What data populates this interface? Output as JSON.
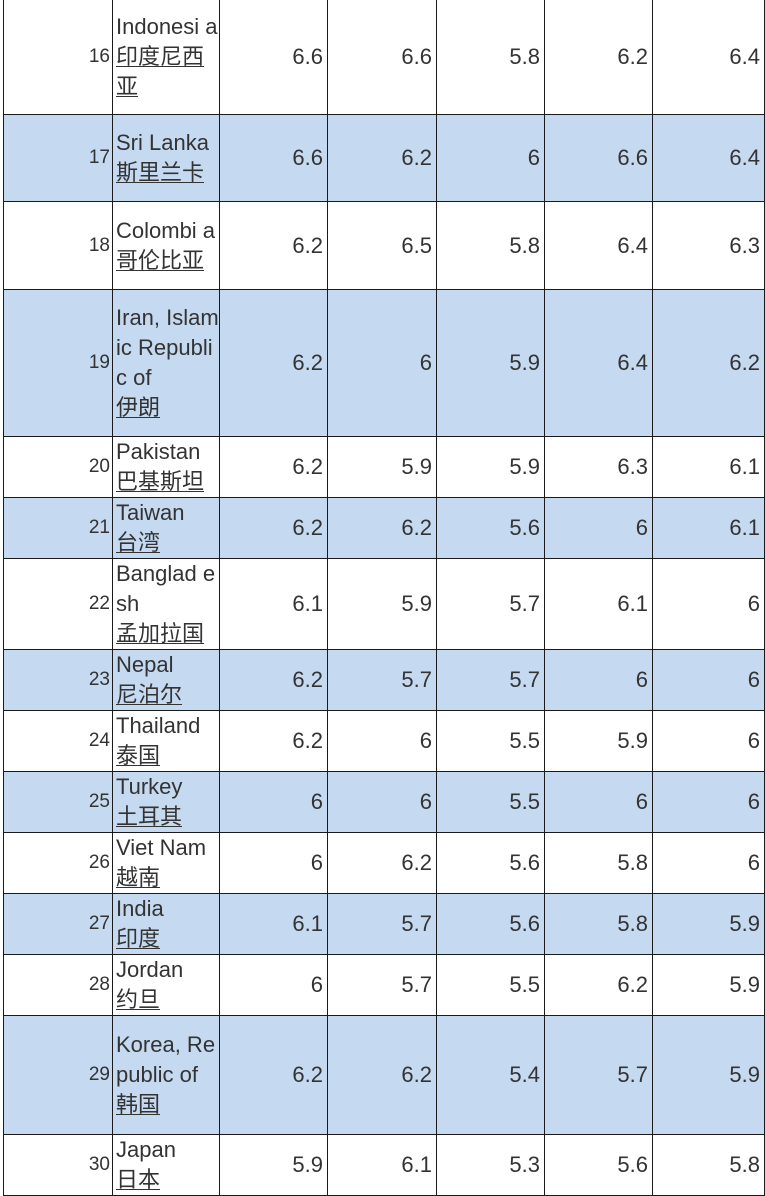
{
  "table": {
    "rows": [
      {
        "rank": "16",
        "en": "Indonesi a",
        "cn": "印度尼西亚",
        "v1": "6.6",
        "v2": "6.6",
        "v3": "5.8",
        "v4": "6.2",
        "v5": "6.4",
        "height": 116
      },
      {
        "rank": "17",
        "en": "Sri Lanka",
        "cn": "斯里兰卡",
        "v1": "6.6",
        "v2": "6.2",
        "v3": "6",
        "v4": "6.6",
        "v5": "6.4",
        "height": 87
      },
      {
        "rank": "18",
        "en": "Colombi a",
        "cn": "哥伦比亚",
        "v1": "6.2",
        "v2": "6.5",
        "v3": "5.8",
        "v4": "6.4",
        "v5": "6.3",
        "height": 88
      },
      {
        "rank": "19",
        "en": "Iran, Islamic Republic of",
        "cn": "伊朗",
        "v1": "6.2",
        "v2": "6",
        "v3": "5.9",
        "v4": "6.4",
        "v5": "6.2",
        "height": 147
      },
      {
        "rank": "20",
        "en": "Pakistan",
        "cn": "巴基斯坦",
        "v1": "6.2",
        "v2": "5.9",
        "v3": "5.9",
        "v4": "6.3",
        "v5": "6.1",
        "height": 59
      },
      {
        "rank": "21",
        "en": "Taiwan",
        "cn": "台湾",
        "v1": "6.2",
        "v2": "6.2",
        "v3": "5.6",
        "v4": "6",
        "v5": "6.1",
        "height": 58
      },
      {
        "rank": "22",
        "en": "Banglad esh",
        "cn": "孟加拉国",
        "v1": "6.1",
        "v2": "5.9",
        "v3": "5.7",
        "v4": "6.1",
        "v5": "6",
        "height": 88
      },
      {
        "rank": "23",
        "en": "Nepal",
        "cn": "尼泊尔",
        "v1": "6.2",
        "v2": "5.7",
        "v3": "5.7",
        "v4": "6",
        "v5": "6",
        "height": 59
      },
      {
        "rank": "24",
        "en": "Thailand",
        "cn": "泰国",
        "v1": "6.2",
        "v2": "6",
        "v3": "5.5",
        "v4": "5.9",
        "v5": "6",
        "height": 58
      },
      {
        "rank": "25",
        "en": "Turkey",
        "cn": "土耳其",
        "v1": "6",
        "v2": "6",
        "v3": "5.5",
        "v4": "6",
        "v5": "6",
        "height": 59
      },
      {
        "rank": "26",
        "en": "Viet Nam",
        "cn": "越南",
        "v1": "6",
        "v2": "6.2",
        "v3": "5.6",
        "v4": "5.8",
        "v5": "6",
        "height": 58
      },
      {
        "rank": "27",
        "en": "India",
        "cn": "印度",
        "v1": "6.1",
        "v2": "5.7",
        "v3": "5.6",
        "v4": "5.8",
        "v5": "5.9",
        "height": 59
      },
      {
        "rank": "28",
        "en": "Jordan",
        "cn": "约旦",
        "v1": "6",
        "v2": "5.7",
        "v3": "5.5",
        "v4": "6.2",
        "v5": "5.9",
        "height": 57
      },
      {
        "rank": "29",
        "en": "Korea, Republic of",
        "cn": "韩国",
        "v1": "6.2",
        "v2": "6.2",
        "v3": "5.4",
        "v4": "5.7",
        "v5": "5.9",
        "height": 119
      },
      {
        "rank": "30",
        "en": "Japan",
        "cn": "日本",
        "v1": "5.9",
        "v2": "6.1",
        "v3": "5.3",
        "v4": "5.6",
        "v5": "5.8",
        "height": 60
      }
    ]
  }
}
